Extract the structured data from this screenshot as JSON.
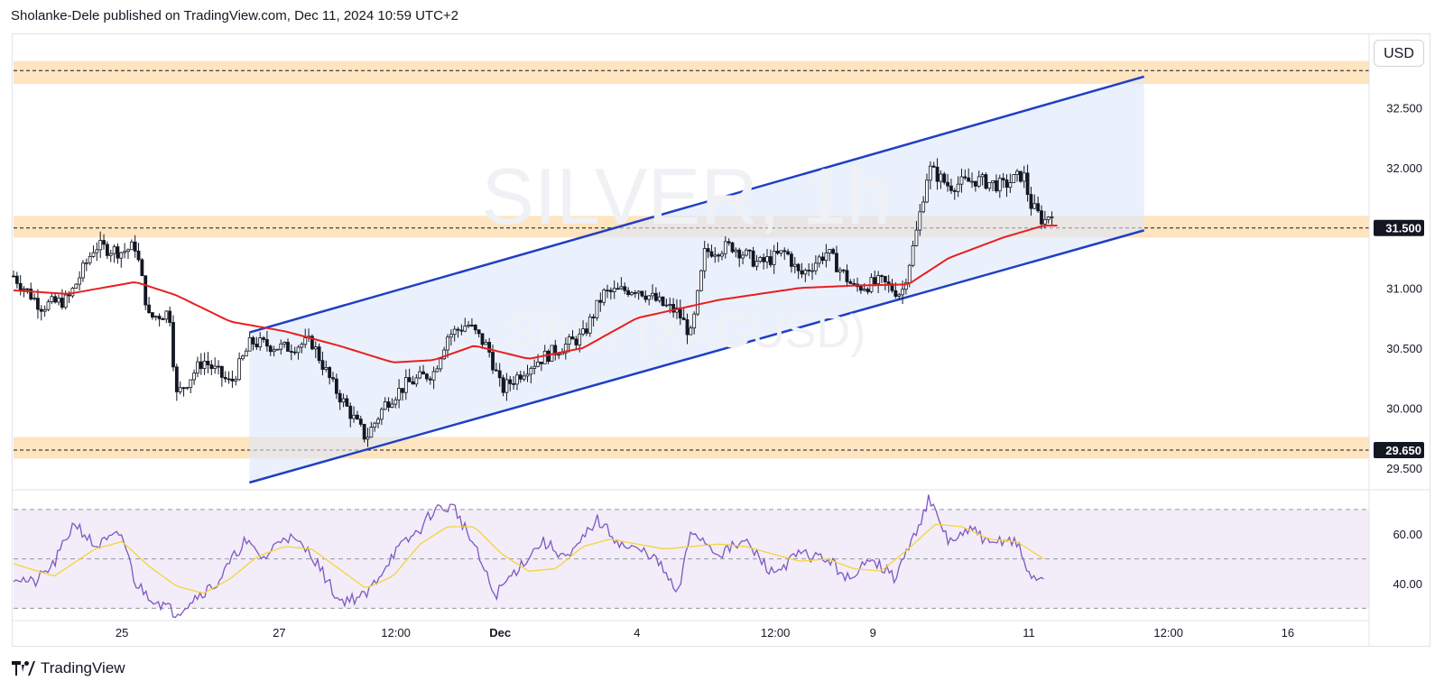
{
  "header": "Sholanke-Dele published on TradingView.com, Dec 11, 2024 10:59 UTC+2",
  "currency_button": "USD",
  "footer_brand": "TradingView",
  "colors": {
    "candle": "#131722",
    "ma": "#e91e1e",
    "channel": "#1f3fc4",
    "channel_fill": "#dce8fb",
    "zone": "#ffd59e",
    "rsi_line": "#7e57c2",
    "rsi_ma": "#f5d43c",
    "rsi_band": "#ede7f6"
  },
  "icons": {
    "footer_logo": "tradingview-logo-icon"
  },
  "chart_data": {
    "type": "candlestick",
    "symbol": "SILVER · 1h",
    "watermark_title": "SILVER, 1h",
    "watermark_subtitle": "Silver (XAGUSD)",
    "price_axis": {
      "ylim": [
        29.32,
        33.12
      ],
      "ticks": [
        "32.500",
        "32.000",
        "31.000",
        "30.500",
        "30.000",
        "29.500"
      ],
      "labels": [
        {
          "value": 31.5,
          "text": "31.500"
        },
        {
          "value": 29.65,
          "text": "29.650"
        }
      ]
    },
    "time_axis": {
      "ticks": [
        "25",
        "27",
        "12:00",
        "Dec",
        "4",
        "12:00",
        "9",
        "11",
        "12:00",
        "16"
      ]
    },
    "zones": [
      {
        "low": 32.7,
        "high": 32.89,
        "line": 32.81
      },
      {
        "low": 31.42,
        "high": 31.6,
        "line": 31.5
      },
      {
        "low": 29.58,
        "high": 29.76,
        "line": 29.65
      }
    ],
    "channel": {
      "upper": [
        {
          "t": 0.174,
          "p": 30.63
        },
        {
          "t": 0.834,
          "p": 32.76
        }
      ],
      "lower": [
        {
          "t": 0.174,
          "p": 29.38
        },
        {
          "t": 0.834,
          "p": 31.48
        }
      ]
    },
    "ma_anchors": [
      [
        0.0,
        30.98
      ],
      [
        0.04,
        30.95
      ],
      [
        0.09,
        31.05
      ],
      [
        0.12,
        30.94
      ],
      [
        0.16,
        30.72
      ],
      [
        0.2,
        30.64
      ],
      [
        0.24,
        30.52
      ],
      [
        0.28,
        30.38
      ],
      [
        0.31,
        30.4
      ],
      [
        0.34,
        30.52
      ],
      [
        0.38,
        30.41
      ],
      [
        0.42,
        30.5
      ],
      [
        0.46,
        30.75
      ],
      [
        0.52,
        30.9
      ],
      [
        0.58,
        31.0
      ],
      [
        0.62,
        31.02
      ],
      [
        0.66,
        31.03
      ],
      [
        0.69,
        31.25
      ],
      [
        0.73,
        31.42
      ],
      [
        0.76,
        31.52
      ],
      [
        0.77,
        31.52
      ]
    ],
    "price_anchors": [
      [
        0.0,
        31.1
      ],
      [
        0.02,
        30.85
      ],
      [
        0.04,
        30.9
      ],
      [
        0.06,
        31.35
      ],
      [
        0.08,
        31.3
      ],
      [
        0.09,
        31.35
      ],
      [
        0.1,
        30.75
      ],
      [
        0.115,
        30.8
      ],
      [
        0.12,
        30.1
      ],
      [
        0.14,
        30.4
      ],
      [
        0.16,
        30.2
      ],
      [
        0.175,
        30.55
      ],
      [
        0.2,
        30.5
      ],
      [
        0.22,
        30.55
      ],
      [
        0.235,
        30.2
      ],
      [
        0.26,
        29.75
      ],
      [
        0.275,
        30.05
      ],
      [
        0.29,
        30.2
      ],
      [
        0.31,
        30.3
      ],
      [
        0.32,
        30.6
      ],
      [
        0.335,
        30.7
      ],
      [
        0.35,
        30.5
      ],
      [
        0.36,
        30.15
      ],
      [
        0.38,
        30.35
      ],
      [
        0.395,
        30.45
      ],
      [
        0.42,
        30.6
      ],
      [
        0.435,
        30.95
      ],
      [
        0.46,
        31.0
      ],
      [
        0.48,
        30.85
      ],
      [
        0.49,
        30.8
      ],
      [
        0.5,
        30.6
      ],
      [
        0.51,
        31.3
      ],
      [
        0.53,
        31.35
      ],
      [
        0.55,
        31.2
      ],
      [
        0.57,
        31.3
      ],
      [
        0.58,
        31.1
      ],
      [
        0.6,
        31.3
      ],
      [
        0.62,
        31.0
      ],
      [
        0.64,
        31.05
      ],
      [
        0.655,
        30.95
      ],
      [
        0.665,
        31.4
      ],
      [
        0.675,
        32.0
      ],
      [
        0.69,
        31.85
      ],
      [
        0.71,
        31.9
      ],
      [
        0.73,
        31.85
      ],
      [
        0.745,
        31.95
      ],
      [
        0.75,
        31.7
      ],
      [
        0.76,
        31.55
      ],
      [
        0.766,
        31.65
      ]
    ],
    "rsi": {
      "levels": [
        70,
        50,
        30
      ],
      "band": [
        30,
        70
      ],
      "ylim": [
        25,
        78
      ],
      "ticks": [
        "60.00",
        "40.00"
      ],
      "anchors": [
        [
          0.0,
          43
        ],
        [
          0.015,
          40
        ],
        [
          0.03,
          48
        ],
        [
          0.045,
          65
        ],
        [
          0.06,
          55
        ],
        [
          0.08,
          60
        ],
        [
          0.09,
          40
        ],
        [
          0.1,
          35
        ],
        [
          0.12,
          28
        ],
        [
          0.135,
          35
        ],
        [
          0.15,
          40
        ],
        [
          0.17,
          57
        ],
        [
          0.185,
          50
        ],
        [
          0.2,
          60
        ],
        [
          0.22,
          52
        ],
        [
          0.24,
          33
        ],
        [
          0.26,
          35
        ],
        [
          0.28,
          52
        ],
        [
          0.3,
          62
        ],
        [
          0.31,
          70
        ],
        [
          0.325,
          71
        ],
        [
          0.34,
          55
        ],
        [
          0.355,
          35
        ],
        [
          0.37,
          45
        ],
        [
          0.39,
          57
        ],
        [
          0.41,
          50
        ],
        [
          0.43,
          66
        ],
        [
          0.45,
          55
        ],
        [
          0.47,
          52
        ],
        [
          0.48,
          45
        ],
        [
          0.49,
          35
        ],
        [
          0.5,
          62
        ],
        [
          0.52,
          52
        ],
        [
          0.54,
          57
        ],
        [
          0.56,
          44
        ],
        [
          0.58,
          52
        ],
        [
          0.6,
          50
        ],
        [
          0.62,
          40
        ],
        [
          0.63,
          52
        ],
        [
          0.65,
          42
        ],
        [
          0.665,
          60
        ],
        [
          0.675,
          74
        ],
        [
          0.69,
          57
        ],
        [
          0.71,
          62
        ],
        [
          0.72,
          55
        ],
        [
          0.73,
          58
        ],
        [
          0.74,
          57
        ],
        [
          0.75,
          42
        ],
        [
          0.76,
          43
        ]
      ],
      "ma_anchors": [
        [
          0.0,
          48
        ],
        [
          0.03,
          43
        ],
        [
          0.06,
          54
        ],
        [
          0.08,
          57
        ],
        [
          0.1,
          47
        ],
        [
          0.12,
          39
        ],
        [
          0.14,
          36
        ],
        [
          0.16,
          42
        ],
        [
          0.18,
          51
        ],
        [
          0.2,
          55
        ],
        [
          0.22,
          54
        ],
        [
          0.24,
          46
        ],
        [
          0.26,
          38
        ],
        [
          0.28,
          43
        ],
        [
          0.3,
          56
        ],
        [
          0.32,
          63
        ],
        [
          0.34,
          63
        ],
        [
          0.36,
          52
        ],
        [
          0.38,
          45
        ],
        [
          0.4,
          46
        ],
        [
          0.42,
          55
        ],
        [
          0.44,
          58
        ],
        [
          0.46,
          56
        ],
        [
          0.48,
          54
        ],
        [
          0.5,
          55
        ],
        [
          0.52,
          56
        ],
        [
          0.54,
          55
        ],
        [
          0.56,
          52
        ],
        [
          0.58,
          49
        ],
        [
          0.6,
          50
        ],
        [
          0.62,
          46
        ],
        [
          0.64,
          45
        ],
        [
          0.66,
          54
        ],
        [
          0.68,
          64
        ],
        [
          0.7,
          63
        ],
        [
          0.72,
          58
        ],
        [
          0.74,
          57
        ],
        [
          0.76,
          50
        ]
      ]
    }
  }
}
